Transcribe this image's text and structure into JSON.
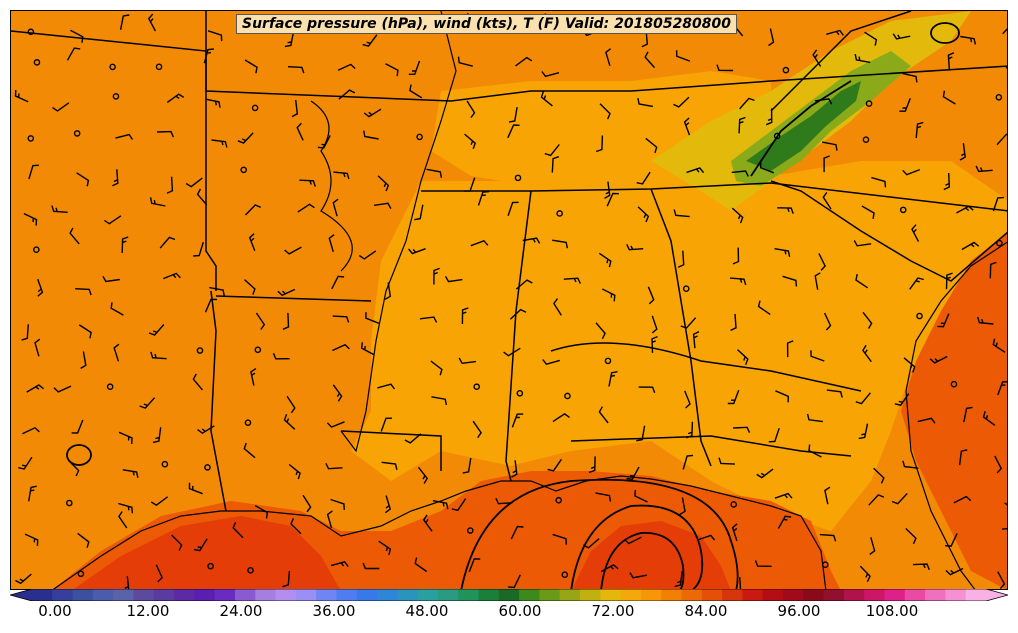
{
  "title": "Surface pressure (hPa), wind (kts), T (F) Valid: 201805280800",
  "colorbar": {
    "tick_labels": [
      "0.00",
      "12.00",
      "24.00",
      "36.00",
      "48.00",
      "60.00",
      "72.00",
      "84.00",
      "96.00",
      "108.00"
    ],
    "colors": [
      "#2a2f8e",
      "#34409c",
      "#3d4f9f",
      "#4a5cab",
      "#5a63a8",
      "#5b4a9e",
      "#5a3ba0",
      "#5d2aa5",
      "#5a1fb0",
      "#6a2cc0",
      "#8a5ad0",
      "#a57fe0",
      "#b38ef0",
      "#9a8ff5",
      "#6f86f2",
      "#4f7cf0",
      "#3878e8",
      "#2f86d6",
      "#2a94bc",
      "#2a9fa0",
      "#2a9a82",
      "#21935a",
      "#1b7e3a",
      "#1a6a25",
      "#3d8a1c",
      "#6a9a18",
      "#98a515",
      "#c0b010",
      "#e3b70c",
      "#f4a80a",
      "#f79606",
      "#f28004",
      "#ec6a05",
      "#e45008",
      "#d8350c",
      "#c81a10",
      "#b50d14",
      "#a00a1a",
      "#8a0a1c",
      "#90102e",
      "#b0124c",
      "#cc1668",
      "#e0208a",
      "#e84aa5",
      "#f070c0",
      "#f590d5",
      "#f9b0e5"
    ]
  },
  "map": {
    "colors": {
      "warm": "#f28a06",
      "mid": "#f7a404",
      "cool": "#e3ba0c",
      "green": "#8aaa1a",
      "darkgreen": "#2f7a1a",
      "hot": "#ec5a05",
      "hotter": "#e43d08",
      "boundary": "#000000"
    }
  }
}
